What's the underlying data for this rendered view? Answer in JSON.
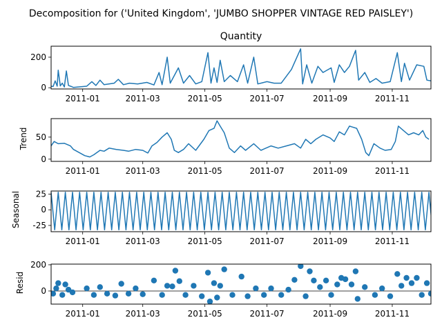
{
  "figure": {
    "suptitle": "Decomposition for ('United Kingdom', 'JUMBO SHOPPER VINTAGE RED PAISLEY')"
  },
  "x_ticks": [
    "2011-01",
    "2011-03",
    "2011-05",
    "2011-07",
    "2011-09",
    "2011-11"
  ],
  "colors": {
    "line": "#1f77b4",
    "axis": "#000000",
    "background": "#ffffff"
  },
  "chart_data": [
    {
      "type": "line",
      "title": "Quantity",
      "ylabel": "",
      "ylim": [
        -8,
        272
      ],
      "yticks": [
        0,
        200
      ],
      "x_range": [
        "2010-12-01",
        "2011-12-09"
      ],
      "series": [
        {
          "kind": "line",
          "points": [
            [
              "2010-12-01",
              10
            ],
            [
              "2010-12-03",
              8
            ],
            [
              "2010-12-05",
              45
            ],
            [
              "2010-12-07",
              10
            ],
            [
              "2010-12-08",
              115
            ],
            [
              "2010-12-10",
              12
            ],
            [
              "2010-12-12",
              30
            ],
            [
              "2010-12-14",
              5
            ],
            [
              "2010-12-16",
              110
            ],
            [
              "2010-12-18",
              15
            ],
            [
              "2010-12-21",
              8
            ],
            [
              "2010-12-23",
              2
            ],
            [
              "2011-01-05",
              10
            ],
            [
              "2011-01-10",
              40
            ],
            [
              "2011-01-14",
              15
            ],
            [
              "2011-01-18",
              50
            ],
            [
              "2011-01-22",
              20
            ],
            [
              "2011-02-01",
              30
            ],
            [
              "2011-02-05",
              55
            ],
            [
              "2011-02-10",
              20
            ],
            [
              "2011-02-16",
              30
            ],
            [
              "2011-02-24",
              25
            ],
            [
              "2011-03-05",
              35
            ],
            [
              "2011-03-12",
              18
            ],
            [
              "2011-03-17",
              100
            ],
            [
              "2011-03-20",
              20
            ],
            [
              "2011-03-25",
              200
            ],
            [
              "2011-03-28",
              30
            ],
            [
              "2011-04-05",
              130
            ],
            [
              "2011-04-10",
              30
            ],
            [
              "2011-04-16",
              80
            ],
            [
              "2011-04-22",
              25
            ],
            [
              "2011-04-28",
              40
            ],
            [
              "2011-05-04",
              230
            ],
            [
              "2011-05-07",
              30
            ],
            [
              "2011-05-10",
              130
            ],
            [
              "2011-05-13",
              35
            ],
            [
              "2011-05-16",
              180
            ],
            [
              "2011-05-20",
              40
            ],
            [
              "2011-05-26",
              80
            ],
            [
              "2011-06-02",
              40
            ],
            [
              "2011-06-08",
              150
            ],
            [
              "2011-06-12",
              30
            ],
            [
              "2011-06-18",
              200
            ],
            [
              "2011-06-22",
              25
            ],
            [
              "2011-07-01",
              40
            ],
            [
              "2011-07-08",
              30
            ],
            [
              "2011-07-15",
              30
            ],
            [
              "2011-07-25",
              120
            ],
            [
              "2011-08-03",
              255
            ],
            [
              "2011-08-05",
              25
            ],
            [
              "2011-08-09",
              150
            ],
            [
              "2011-08-14",
              30
            ],
            [
              "2011-08-20",
              140
            ],
            [
              "2011-08-25",
              100
            ],
            [
              "2011-09-02",
              130
            ],
            [
              "2011-09-05",
              35
            ],
            [
              "2011-09-10",
              150
            ],
            [
              "2011-09-15",
              100
            ],
            [
              "2011-09-20",
              140
            ],
            [
              "2011-09-26",
              245
            ],
            [
              "2011-09-29",
              50
            ],
            [
              "2011-10-05",
              100
            ],
            [
              "2011-10-10",
              35
            ],
            [
              "2011-10-16",
              60
            ],
            [
              "2011-10-22",
              30
            ],
            [
              "2011-10-30",
              40
            ],
            [
              "2011-11-06",
              230
            ],
            [
              "2011-11-10",
              40
            ],
            [
              "2011-11-13",
              160
            ],
            [
              "2011-11-18",
              50
            ],
            [
              "2011-11-25",
              150
            ],
            [
              "2011-12-02",
              140
            ],
            [
              "2011-12-05",
              50
            ],
            [
              "2011-12-09",
              45
            ]
          ]
        }
      ]
    },
    {
      "type": "line",
      "title": "",
      "ylabel": "Trend",
      "ylim": [
        -5,
        92
      ],
      "yticks": [
        0,
        50
      ],
      "x_range": [
        "2010-12-01",
        "2011-12-09"
      ],
      "series": [
        {
          "kind": "line",
          "points": [
            [
              "2010-12-01",
              30
            ],
            [
              "2010-12-04",
              40
            ],
            [
              "2010-12-08",
              35
            ],
            [
              "2010-12-14",
              36
            ],
            [
              "2010-12-20",
              30
            ],
            [
              "2010-12-23",
              22
            ],
            [
              "2011-01-03",
              8
            ],
            [
              "2011-01-08",
              5
            ],
            [
              "2011-01-12",
              10
            ],
            [
              "2011-01-18",
              20
            ],
            [
              "2011-01-22",
              18
            ],
            [
              "2011-01-27",
              25
            ],
            [
              "2011-02-03",
              22
            ],
            [
              "2011-02-10",
              20
            ],
            [
              "2011-02-15",
              18
            ],
            [
              "2011-02-22",
              22
            ],
            [
              "2011-03-01",
              20
            ],
            [
              "2011-03-06",
              14
            ],
            [
              "2011-03-10",
              30
            ],
            [
              "2011-03-15",
              38
            ],
            [
              "2011-03-20",
              50
            ],
            [
              "2011-03-25",
              60
            ],
            [
              "2011-03-29",
              45
            ],
            [
              "2011-04-01",
              20
            ],
            [
              "2011-04-05",
              15
            ],
            [
              "2011-04-10",
              22
            ],
            [
              "2011-04-15",
              35
            ],
            [
              "2011-04-22",
              20
            ],
            [
              "2011-04-30",
              45
            ],
            [
              "2011-05-05",
              65
            ],
            [
              "2011-05-10",
              70
            ],
            [
              "2011-05-13",
              87
            ],
            [
              "2011-05-16",
              75
            ],
            [
              "2011-05-20",
              60
            ],
            [
              "2011-05-25",
              25
            ],
            [
              "2011-05-30",
              15
            ],
            [
              "2011-06-05",
              30
            ],
            [
              "2011-06-10",
              20
            ],
            [
              "2011-06-18",
              35
            ],
            [
              "2011-06-25",
              20
            ],
            [
              "2011-07-05",
              30
            ],
            [
              "2011-07-12",
              25
            ],
            [
              "2011-07-20",
              30
            ],
            [
              "2011-07-28",
              35
            ],
            [
              "2011-08-03",
              25
            ],
            [
              "2011-08-08",
              45
            ],
            [
              "2011-08-13",
              35
            ],
            [
              "2011-08-18",
              45
            ],
            [
              "2011-08-25",
              55
            ],
            [
              "2011-09-01",
              48
            ],
            [
              "2011-09-05",
              40
            ],
            [
              "2011-09-10",
              62
            ],
            [
              "2011-09-15",
              55
            ],
            [
              "2011-09-20",
              75
            ],
            [
              "2011-09-27",
              70
            ],
            [
              "2011-10-02",
              45
            ],
            [
              "2011-10-06",
              15
            ],
            [
              "2011-10-09",
              8
            ],
            [
              "2011-10-14",
              35
            ],
            [
              "2011-10-20",
              25
            ],
            [
              "2011-10-25",
              20
            ],
            [
              "2011-10-31",
              22
            ],
            [
              "2011-11-04",
              40
            ],
            [
              "2011-11-07",
              75
            ],
            [
              "2011-11-12",
              65
            ],
            [
              "2011-11-17",
              55
            ],
            [
              "2011-11-22",
              60
            ],
            [
              "2011-11-27",
              55
            ],
            [
              "2011-12-01",
              65
            ],
            [
              "2011-12-04",
              50
            ],
            [
              "2011-12-07",
              45
            ]
          ]
        }
      ]
    },
    {
      "type": "line",
      "title": "",
      "ylabel": "Seasonal",
      "ylim": [
        -35,
        30
      ],
      "yticks": [
        -25,
        0,
        25
      ],
      "x_range": [
        "2010-12-01",
        "2011-12-09"
      ],
      "series": [
        {
          "kind": "periodic",
          "period_days": 7,
          "min": -32,
          "max": 28
        }
      ]
    },
    {
      "type": "scatter",
      "title": "",
      "ylabel": "Resid",
      "ylim": [
        -100,
        205
      ],
      "yticks": [
        0,
        200
      ],
      "x_range": [
        "2010-12-01",
        "2011-12-09"
      ],
      "series": [
        {
          "kind": "scatter",
          "points": [
            [
              "2010-12-03",
              -20
            ],
            [
              "2010-12-06",
              20
            ],
            [
              "2010-12-08",
              60
            ],
            [
              "2010-12-12",
              -30
            ],
            [
              "2010-12-15",
              50
            ],
            [
              "2010-12-18",
              10
            ],
            [
              "2010-12-22",
              -10
            ],
            [
              "2011-01-05",
              20
            ],
            [
              "2011-01-12",
              -30
            ],
            [
              "2011-01-18",
              30
            ],
            [
              "2011-01-25",
              -20
            ],
            [
              "2011-02-02",
              -35
            ],
            [
              "2011-02-08",
              55
            ],
            [
              "2011-02-15",
              -20
            ],
            [
              "2011-02-22",
              20
            ],
            [
              "2011-03-01",
              -25
            ],
            [
              "2011-03-12",
              80
            ],
            [
              "2011-03-20",
              -30
            ],
            [
              "2011-03-25",
              40
            ],
            [
              "2011-03-30",
              35
            ],
            [
              "2011-04-02",
              155
            ],
            [
              "2011-04-06",
              75
            ],
            [
              "2011-04-12",
              -30
            ],
            [
              "2011-04-20",
              40
            ],
            [
              "2011-04-28",
              -40
            ],
            [
              "2011-05-04",
              140
            ],
            [
              "2011-05-06",
              -80
            ],
            [
              "2011-05-10",
              60
            ],
            [
              "2011-05-13",
              -50
            ],
            [
              "2011-05-16",
              40
            ],
            [
              "2011-05-20",
              165
            ],
            [
              "2011-05-28",
              -30
            ],
            [
              "2011-06-06",
              110
            ],
            [
              "2011-06-12",
              -40
            ],
            [
              "2011-06-20",
              20
            ],
            [
              "2011-06-28",
              -30
            ],
            [
              "2011-07-05",
              20
            ],
            [
              "2011-07-15",
              -30
            ],
            [
              "2011-07-22",
              10
            ],
            [
              "2011-07-28",
              85
            ],
            [
              "2011-08-03",
              190
            ],
            [
              "2011-08-08",
              -40
            ],
            [
              "2011-08-12",
              150
            ],
            [
              "2011-08-16",
              80
            ],
            [
              "2011-08-22",
              30
            ],
            [
              "2011-08-28",
              80
            ],
            [
              "2011-09-02",
              -30
            ],
            [
              "2011-09-08",
              50
            ],
            [
              "2011-09-12",
              100
            ],
            [
              "2011-09-16",
              90
            ],
            [
              "2011-09-22",
              50
            ],
            [
              "2011-09-26",
              150
            ],
            [
              "2011-09-28",
              -60
            ],
            [
              "2011-10-05",
              30
            ],
            [
              "2011-10-15",
              -30
            ],
            [
              "2011-10-22",
              20
            ],
            [
              "2011-10-30",
              -40
            ],
            [
              "2011-11-06",
              130
            ],
            [
              "2011-11-10",
              40
            ],
            [
              "2011-11-15",
              100
            ],
            [
              "2011-11-20",
              60
            ],
            [
              "2011-11-25",
              100
            ],
            [
              "2011-11-30",
              -30
            ],
            [
              "2011-12-05",
              60
            ],
            [
              "2011-12-09",
              -20
            ]
          ]
        }
      ]
    }
  ]
}
